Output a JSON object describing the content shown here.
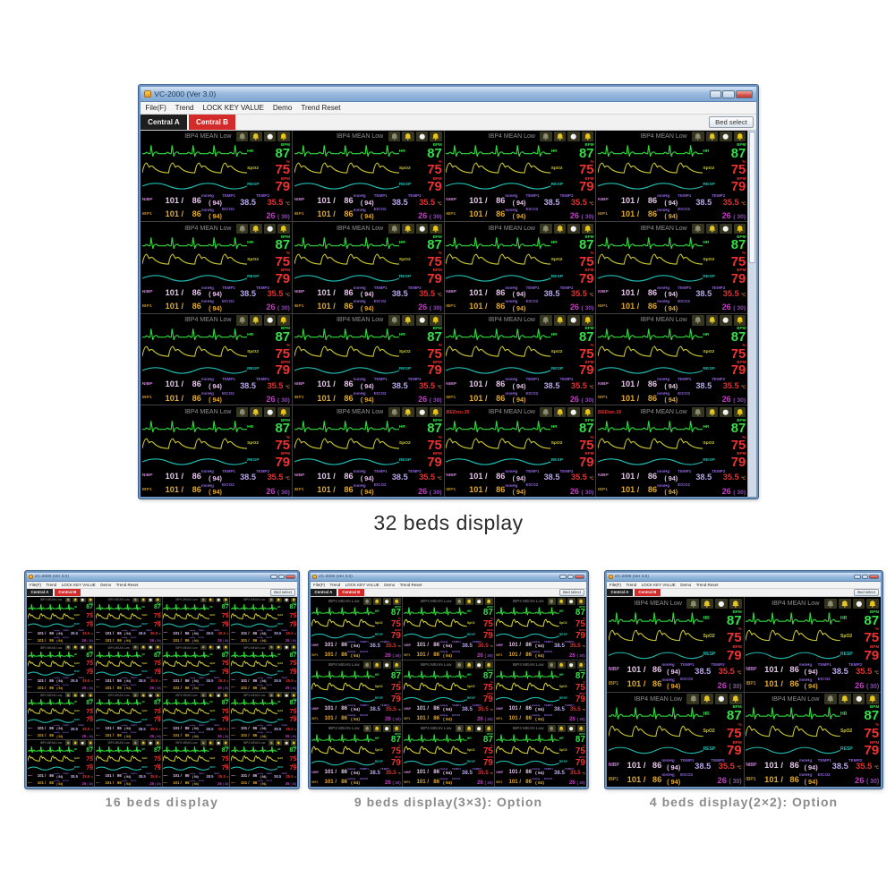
{
  "chrome": {
    "title": "VC-2000 (Ver 3.0)",
    "menu_items": [
      "File(F)",
      "Trend",
      "LOCK KEY VALUE",
      "Demo",
      "Trend Reset"
    ],
    "tab_a": "Central A",
    "tab_b": "Central B",
    "bed_select": "Bed select"
  },
  "windows": [
    {
      "key": "w32",
      "cols": 4,
      "rows": 4,
      "beds_visible": 16,
      "has_scrollbar": true,
      "caption": "32 beds display",
      "alarm_overrides": [
        {
          "index": 14,
          "text": "BEDno.15"
        },
        {
          "index": 15,
          "text": "BEDno.16"
        }
      ]
    },
    {
      "key": "w16",
      "cols": 4,
      "rows": 4,
      "beds_visible": 16,
      "has_scrollbar": false,
      "caption": "16 beds display",
      "alarm_overrides": []
    },
    {
      "key": "w9",
      "cols": 3,
      "rows": 3,
      "beds_visible": 9,
      "has_scrollbar": false,
      "caption": "9 beds display(3×3): Option",
      "alarm_overrides": []
    },
    {
      "key": "w4",
      "cols": 2,
      "rows": 2,
      "beds_visible": 4,
      "has_scrollbar": false,
      "caption": "4 beds display(2×2): Option",
      "alarm_overrides": []
    }
  ],
  "bed": {
    "header": "IBP4 MEAN Low",
    "icons": [
      "alarm-mute-bell",
      "alarm-bell",
      "silence-circle",
      "alarm-bell"
    ],
    "hr": {
      "label": "HR",
      "unit": "BPM",
      "value": "87"
    },
    "spo2": {
      "label": "SpO2",
      "unit": "%",
      "value": "75"
    },
    "resp": {
      "label": "RESP",
      "unit": "BPM",
      "value": "79"
    },
    "nibp": {
      "label": "NIBP",
      "sys": "101 /",
      "dia": "86",
      "mean": "( 94)",
      "unit": "mmHg"
    },
    "temp1": {
      "label": "TEMP1",
      "value": "38.5"
    },
    "temp2": {
      "label": "TEMP2",
      "value": "35.5",
      "unit": "℃"
    },
    "ibp1": {
      "label": "IBP1",
      "sys": "101 /",
      "dia": "86",
      "mean": "( 94)",
      "unit": "mmHg"
    },
    "etco2": {
      "label": "EtCO2",
      "value": "26",
      "sub": "( 30)"
    }
  },
  "colors": {
    "ecg": "#2edb3a",
    "spo2w": "#cdc92f",
    "respw": "#1fbdb2",
    "hr": "#35e04a",
    "red": "#f03232",
    "nibp": "#e4c4e8",
    "ibp": "#e0a92c",
    "temp1": "#b9a6e8",
    "temp2": "#e23333",
    "etco2": "#c43cc4",
    "lab": "#8d62d8",
    "hdr": "#909090",
    "alarm": "#e03030"
  }
}
